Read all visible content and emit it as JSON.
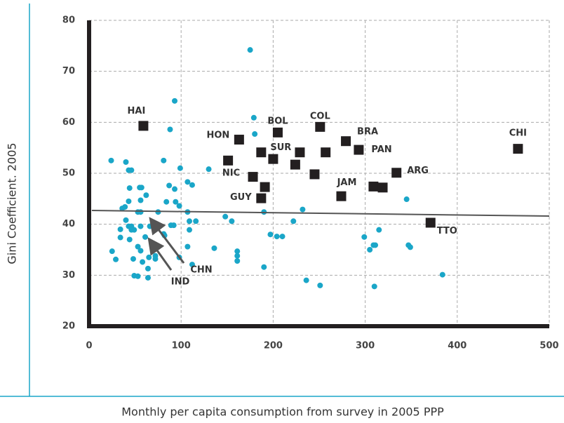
{
  "chart_data": {
    "type": "scatter",
    "x_label": "Monthly per capita consumption from survey in 2005 PPP",
    "y_label": "Gini Coefficient. 2005",
    "xlim": [
      0,
      500
    ],
    "ylim": [
      20,
      80
    ],
    "xticks": [
      0,
      100,
      200,
      300,
      400,
      500
    ],
    "yticks": [
      20,
      30,
      40,
      50,
      60,
      70,
      80
    ],
    "grid": true,
    "points": {
      "color": "#1aa6c8",
      "x": [
        24,
        25,
        29,
        34,
        34,
        36,
        39,
        40,
        43,
        46,
        43,
        44,
        40,
        43,
        46,
        46,
        49,
        44,
        48,
        49,
        53,
        53,
        55,
        57,
        56,
        53,
        56,
        56,
        58,
        56,
        61,
        64,
        64,
        65,
        66,
        62,
        72,
        72,
        75,
        81,
        82,
        81,
        87,
        88,
        93,
        93,
        89,
        92,
        84,
        94,
        98,
        99,
        98,
        107,
        112,
        107,
        109,
        109,
        107,
        112,
        116,
        130,
        136,
        148,
        155,
        175,
        179,
        180,
        161,
        161,
        161,
        190,
        190,
        197,
        204,
        210,
        222,
        232,
        236,
        251,
        299,
        305,
        309,
        311,
        310,
        315,
        345,
        347,
        349,
        384
      ],
      "values": [
        52.5,
        34.7,
        33.1,
        39.0,
        37.4,
        43.1,
        43.4,
        52.2,
        50.6,
        50.6,
        44.5,
        47.1,
        40.8,
        39.6,
        39.6,
        38.9,
        38.9,
        37.0,
        33.2,
        29.9,
        29.8,
        35.6,
        47.2,
        47.2,
        44.7,
        42.4,
        42.4,
        34.8,
        32.6,
        39.6,
        37.5,
        29.5,
        31.3,
        33.5,
        39.6,
        45.7,
        33.2,
        33.8,
        42.4,
        38.1,
        37.8,
        52.5,
        47.6,
        58.6,
        64.2,
        46.9,
        39.8,
        39.8,
        44.4,
        44.4,
        43.6,
        51.0,
        33.5,
        48.3,
        47.7,
        42.4,
        40.6,
        38.9,
        35.6,
        32.1,
        40.6,
        50.8,
        35.3,
        41.5,
        40.6,
        74.2,
        60.9,
        57.7,
        33.8,
        32.8,
        34.7,
        42.4,
        31.6,
        38.0,
        37.6,
        37.6,
        40.6,
        42.9,
        29.0,
        28.0,
        37.5,
        35.0,
        35.9,
        35.9,
        27.8,
        38.9,
        44.9,
        35.9,
        35.5,
        30.1
      ]
    },
    "labeled": {
      "color": "#231f20",
      "x": [
        59,
        163,
        205,
        251,
        279,
        293,
        466,
        151,
        187,
        200,
        229,
        224,
        257,
        178,
        191,
        245,
        334,
        187,
        274,
        309,
        319,
        371
      ],
      "values": [
        59.3,
        56.6,
        58.0,
        59.1,
        56.3,
        54.6,
        54.8,
        52.5,
        54.1,
        52.8,
        54.1,
        51.7,
        54.1,
        49.3,
        47.3,
        49.8,
        50.1,
        45.1,
        45.5,
        47.4,
        47.2,
        40.3
      ],
      "labels": [
        "HAI",
        "HON",
        "BOL",
        "COL",
        "BRA",
        "PAN",
        "CHI",
        null,
        null,
        "SUR",
        null,
        null,
        null,
        "NIC",
        null,
        null,
        "ARG",
        "GUY",
        "JAM",
        null,
        null,
        "TTO"
      ]
    },
    "trend": {
      "color": "#555555",
      "x": [
        3,
        500
      ],
      "values": [
        42.7,
        41.6
      ]
    },
    "annotations": [
      "CHN",
      "IND"
    ]
  }
}
